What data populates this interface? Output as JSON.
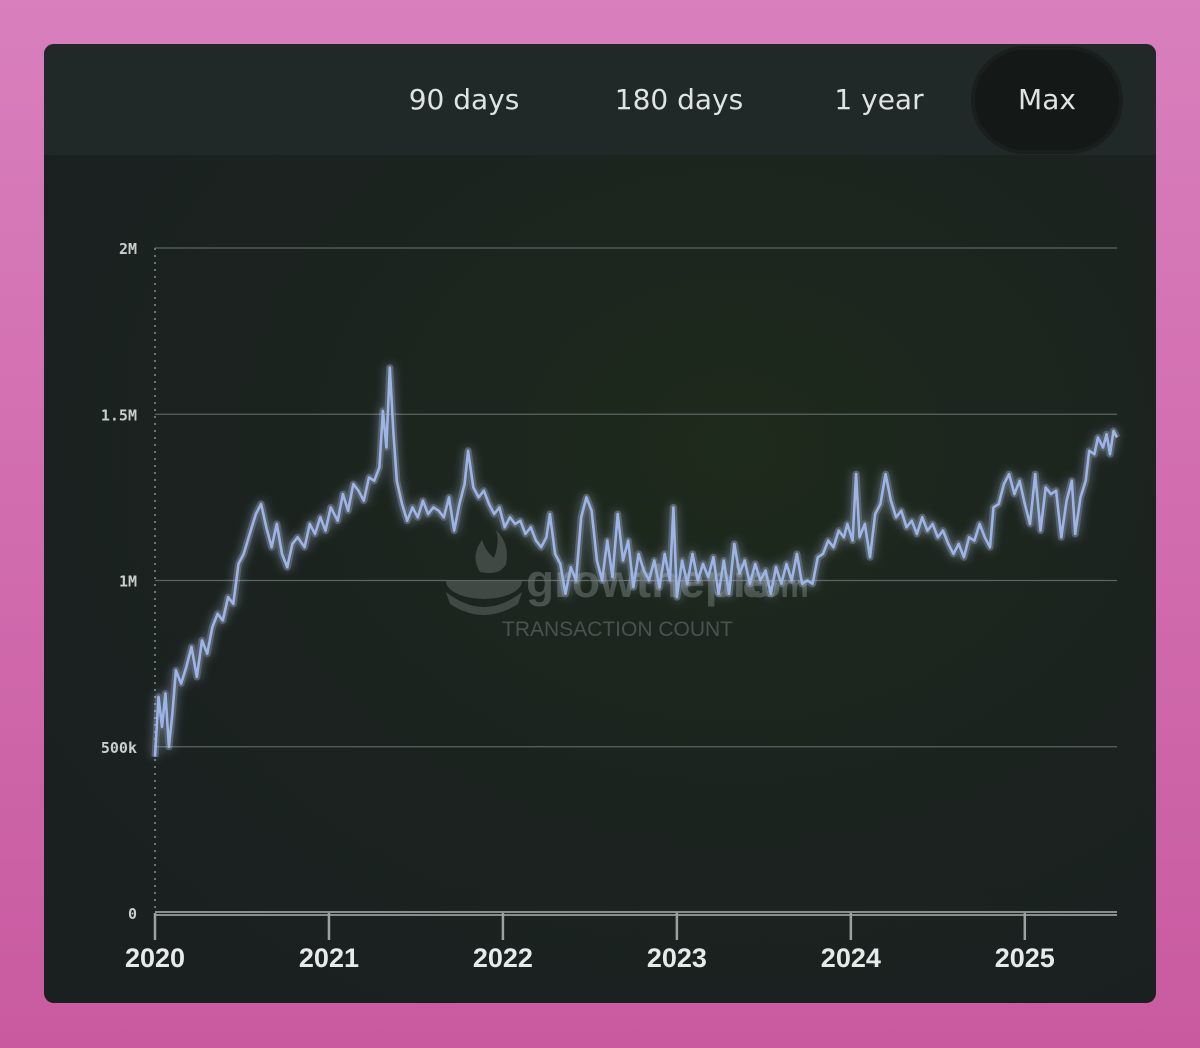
{
  "tabs": [
    {
      "label": "90 days"
    },
    {
      "label": "180 days"
    },
    {
      "label": "1 year"
    },
    {
      "label": "Max",
      "active": true
    }
  ],
  "watermark": {
    "brand": "growthepie",
    "brand_suffix": ".com",
    "subtitle": "TRANSACTION COUNT"
  },
  "colors": {
    "line": "#9db4e6",
    "glow": "#c9d8ff",
    "grid": "#5b6462",
    "tab_active": "#141816"
  },
  "chart_data": {
    "type": "line",
    "title": "",
    "xlabel": "",
    "ylabel": "",
    "x_ticks": [
      "2020",
      "2021",
      "2022",
      "2023",
      "2024",
      "2025"
    ],
    "y_ticks": [
      {
        "value": 0,
        "label": "0"
      },
      {
        "value": 500000,
        "label": "500k"
      },
      {
        "value": 1000000,
        "label": "1M"
      },
      {
        "value": 1500000,
        "label": "1.5M"
      },
      {
        "value": 2000000,
        "label": "2M"
      }
    ],
    "xlim": [
      2020.0,
      2025.53
    ],
    "ylim": [
      0,
      2000000
    ],
    "grid": true,
    "series": [
      {
        "points": [
          [
            2020.0,
            470000
          ],
          [
            2020.02,
            650000
          ],
          [
            2020.04,
            560000
          ],
          [
            2020.06,
            660000
          ],
          [
            2020.08,
            500000
          ],
          [
            2020.1,
            600000
          ],
          [
            2020.12,
            730000
          ],
          [
            2020.15,
            690000
          ],
          [
            2020.18,
            740000
          ],
          [
            2020.21,
            800000
          ],
          [
            2020.24,
            710000
          ],
          [
            2020.27,
            820000
          ],
          [
            2020.3,
            780000
          ],
          [
            2020.33,
            860000
          ],
          [
            2020.36,
            900000
          ],
          [
            2020.39,
            880000
          ],
          [
            2020.42,
            950000
          ],
          [
            2020.45,
            930000
          ],
          [
            2020.48,
            1050000
          ],
          [
            2020.51,
            1080000
          ],
          [
            2020.55,
            1150000
          ],
          [
            2020.58,
            1200000
          ],
          [
            2020.61,
            1230000
          ],
          [
            2020.64,
            1160000
          ],
          [
            2020.67,
            1100000
          ],
          [
            2020.7,
            1170000
          ],
          [
            2020.73,
            1080000
          ],
          [
            2020.76,
            1040000
          ],
          [
            2020.79,
            1110000
          ],
          [
            2020.82,
            1130000
          ],
          [
            2020.86,
            1100000
          ],
          [
            2020.89,
            1170000
          ],
          [
            2020.92,
            1140000
          ],
          [
            2020.95,
            1190000
          ],
          [
            2020.98,
            1150000
          ],
          [
            2021.01,
            1220000
          ],
          [
            2021.05,
            1180000
          ],
          [
            2021.08,
            1260000
          ],
          [
            2021.11,
            1210000
          ],
          [
            2021.14,
            1290000
          ],
          [
            2021.17,
            1270000
          ],
          [
            2021.2,
            1240000
          ],
          [
            2021.23,
            1310000
          ],
          [
            2021.26,
            1300000
          ],
          [
            2021.29,
            1340000
          ],
          [
            2021.31,
            1510000
          ],
          [
            2021.33,
            1400000
          ],
          [
            2021.35,
            1640000
          ],
          [
            2021.37,
            1450000
          ],
          [
            2021.39,
            1300000
          ],
          [
            2021.42,
            1230000
          ],
          [
            2021.45,
            1180000
          ],
          [
            2021.48,
            1220000
          ],
          [
            2021.51,
            1190000
          ],
          [
            2021.54,
            1240000
          ],
          [
            2021.57,
            1200000
          ],
          [
            2021.6,
            1220000
          ],
          [
            2021.63,
            1210000
          ],
          [
            2021.66,
            1190000
          ],
          [
            2021.69,
            1250000
          ],
          [
            2021.72,
            1150000
          ],
          [
            2021.75,
            1230000
          ],
          [
            2021.78,
            1290000
          ],
          [
            2021.8,
            1390000
          ],
          [
            2021.83,
            1280000
          ],
          [
            2021.86,
            1250000
          ],
          [
            2021.89,
            1270000
          ],
          [
            2021.92,
            1230000
          ],
          [
            2021.95,
            1200000
          ],
          [
            2021.98,
            1220000
          ],
          [
            2022.01,
            1160000
          ],
          [
            2022.04,
            1190000
          ],
          [
            2022.07,
            1170000
          ],
          [
            2022.1,
            1180000
          ],
          [
            2022.13,
            1140000
          ],
          [
            2022.16,
            1160000
          ],
          [
            2022.19,
            1120000
          ],
          [
            2022.22,
            1100000
          ],
          [
            2022.25,
            1130000
          ],
          [
            2022.27,
            1200000
          ],
          [
            2022.3,
            1080000
          ],
          [
            2022.33,
            1050000
          ],
          [
            2022.36,
            960000
          ],
          [
            2022.39,
            1040000
          ],
          [
            2022.42,
            1000000
          ],
          [
            2022.45,
            1190000
          ],
          [
            2022.48,
            1250000
          ],
          [
            2022.51,
            1210000
          ],
          [
            2022.54,
            1060000
          ],
          [
            2022.57,
            1000000
          ],
          [
            2022.6,
            1120000
          ],
          [
            2022.63,
            1010000
          ],
          [
            2022.66,
            1200000
          ],
          [
            2022.69,
            1060000
          ],
          [
            2022.72,
            1120000
          ],
          [
            2022.75,
            980000
          ],
          [
            2022.78,
            1080000
          ],
          [
            2022.81,
            1030000
          ],
          [
            2022.84,
            1000000
          ],
          [
            2022.87,
            1060000
          ],
          [
            2022.9,
            980000
          ],
          [
            2022.93,
            1080000
          ],
          [
            2022.96,
            1000000
          ],
          [
            2022.98,
            1220000
          ],
          [
            2023.0,
            950000
          ],
          [
            2023.03,
            1060000
          ],
          [
            2023.06,
            990000
          ],
          [
            2023.09,
            1080000
          ],
          [
            2023.12,
            1000000
          ],
          [
            2023.15,
            1050000
          ],
          [
            2023.18,
            1010000
          ],
          [
            2023.21,
            1070000
          ],
          [
            2023.24,
            960000
          ],
          [
            2023.27,
            1060000
          ],
          [
            2023.3,
            960000
          ],
          [
            2023.33,
            1110000
          ],
          [
            2023.36,
            1020000
          ],
          [
            2023.39,
            1060000
          ],
          [
            2023.42,
            990000
          ],
          [
            2023.45,
            1050000
          ],
          [
            2023.48,
            1000000
          ],
          [
            2023.51,
            1030000
          ],
          [
            2023.54,
            960000
          ],
          [
            2023.57,
            1040000
          ],
          [
            2023.6,
            990000
          ],
          [
            2023.63,
            1050000
          ],
          [
            2023.66,
            1000000
          ],
          [
            2023.69,
            1080000
          ],
          [
            2023.72,
            990000
          ],
          [
            2023.75,
            1000000
          ],
          [
            2023.78,
            990000
          ],
          [
            2023.81,
            1070000
          ],
          [
            2023.84,
            1080000
          ],
          [
            2023.87,
            1120000
          ],
          [
            2023.9,
            1100000
          ],
          [
            2023.93,
            1150000
          ],
          [
            2023.96,
            1130000
          ],
          [
            2023.98,
            1170000
          ],
          [
            2024.01,
            1120000
          ],
          [
            2024.03,
            1320000
          ],
          [
            2024.05,
            1130000
          ],
          [
            2024.08,
            1170000
          ],
          [
            2024.11,
            1070000
          ],
          [
            2024.14,
            1200000
          ],
          [
            2024.17,
            1230000
          ],
          [
            2024.2,
            1320000
          ],
          [
            2024.23,
            1240000
          ],
          [
            2024.26,
            1190000
          ],
          [
            2024.29,
            1210000
          ],
          [
            2024.32,
            1160000
          ],
          [
            2024.35,
            1180000
          ],
          [
            2024.38,
            1140000
          ],
          [
            2024.41,
            1190000
          ],
          [
            2024.44,
            1150000
          ],
          [
            2024.47,
            1170000
          ],
          [
            2024.5,
            1130000
          ],
          [
            2024.53,
            1150000
          ],
          [
            2024.56,
            1110000
          ],
          [
            2024.59,
            1080000
          ],
          [
            2024.62,
            1110000
          ],
          [
            2024.65,
            1070000
          ],
          [
            2024.68,
            1130000
          ],
          [
            2024.71,
            1120000
          ],
          [
            2024.74,
            1170000
          ],
          [
            2024.77,
            1130000
          ],
          [
            2024.8,
            1100000
          ],
          [
            2024.82,
            1220000
          ],
          [
            2024.85,
            1230000
          ],
          [
            2024.88,
            1290000
          ],
          [
            2024.91,
            1320000
          ],
          [
            2024.94,
            1260000
          ],
          [
            2024.97,
            1300000
          ],
          [
            2025.0,
            1230000
          ],
          [
            2025.03,
            1170000
          ],
          [
            2025.06,
            1320000
          ],
          [
            2025.09,
            1150000
          ],
          [
            2025.12,
            1280000
          ],
          [
            2025.15,
            1260000
          ],
          [
            2025.18,
            1270000
          ],
          [
            2025.21,
            1130000
          ],
          [
            2025.24,
            1240000
          ],
          [
            2025.27,
            1300000
          ],
          [
            2025.29,
            1140000
          ],
          [
            2025.32,
            1250000
          ],
          [
            2025.35,
            1300000
          ],
          [
            2025.37,
            1390000
          ],
          [
            2025.4,
            1380000
          ],
          [
            2025.42,
            1430000
          ],
          [
            2025.45,
            1400000
          ],
          [
            2025.47,
            1440000
          ],
          [
            2025.49,
            1380000
          ],
          [
            2025.51,
            1450000
          ],
          [
            2025.53,
            1430000
          ]
        ]
      }
    ]
  }
}
